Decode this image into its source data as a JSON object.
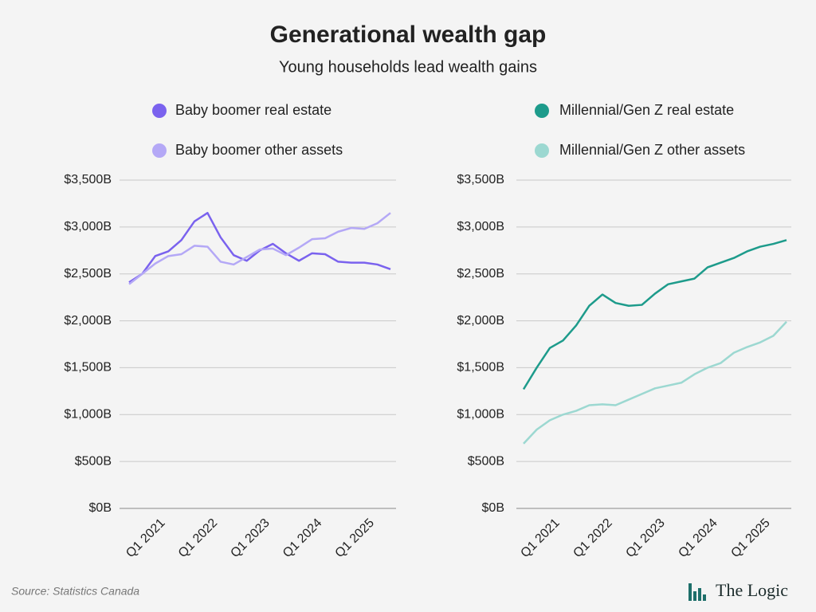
{
  "header": {
    "title": "Generational wealth gap",
    "subtitle": "Young households lead wealth gains"
  },
  "footer": {
    "source": "Source: Statistics Canada",
    "brand": "The Logic"
  },
  "chart_data": [
    {
      "type": "line",
      "categories": [
        null,
        null,
        "Q1 2021",
        null,
        null,
        null,
        "Q1 2022",
        null,
        null,
        null,
        "Q1 2023",
        null,
        null,
        null,
        "Q1 2024",
        null,
        null,
        null,
        "Q1 2025",
        null,
        null
      ],
      "series": [
        {
          "name": "Baby boomer real estate",
          "color": "#7a62ee",
          "values": [
            2410,
            2500,
            2690,
            2740,
            2860,
            3060,
            3150,
            2890,
            2700,
            2640,
            2750,
            2820,
            2720,
            2640,
            2720,
            2710,
            2630,
            2620,
            2620,
            2600,
            2550
          ]
        },
        {
          "name": "Baby boomer other assets",
          "color": "#b4a8f6",
          "values": [
            2390,
            2500,
            2610,
            2690,
            2710,
            2800,
            2790,
            2630,
            2600,
            2680,
            2760,
            2770,
            2700,
            2780,
            2870,
            2880,
            2950,
            2990,
            2980,
            3040,
            3150
          ]
        }
      ],
      "ylim": [
        0,
        3500
      ],
      "yticks": [
        {
          "value": 0,
          "label": "$0B"
        },
        {
          "value": 500,
          "label": "$500B"
        },
        {
          "value": 1000,
          "label": "$1,000B"
        },
        {
          "value": 1500,
          "label": "$1,500B"
        },
        {
          "value": 2000,
          "label": "$2,000B"
        },
        {
          "value": 2500,
          "label": "$2,500B"
        },
        {
          "value": 3000,
          "label": "$3,000B"
        },
        {
          "value": 3500,
          "label": "$3,500B"
        }
      ],
      "grid": true
    },
    {
      "type": "line",
      "categories": [
        null,
        null,
        "Q1 2021",
        null,
        null,
        null,
        "Q1 2022",
        null,
        null,
        null,
        "Q1 2023",
        null,
        null,
        null,
        "Q1 2024",
        null,
        null,
        null,
        "Q1 2025",
        null,
        null
      ],
      "series": [
        {
          "name": "Millennial/Gen Z real estate",
          "color": "#1d9b8b",
          "values": [
            1270,
            1500,
            1710,
            1790,
            1950,
            2160,
            2280,
            2190,
            2160,
            2170,
            2290,
            2390,
            2420,
            2450,
            2570,
            2620,
            2670,
            2740,
            2790,
            2820,
            2860
          ]
        },
        {
          "name": "Millennial/Gen Z other assets",
          "color": "#9cd8d1",
          "values": [
            690,
            840,
            940,
            1000,
            1040,
            1100,
            1110,
            1100,
            1160,
            1220,
            1280,
            1310,
            1340,
            1430,
            1500,
            1550,
            1660,
            1720,
            1770,
            1840,
            1990
          ]
        }
      ],
      "ylim": [
        0,
        3500
      ],
      "yticks": [
        {
          "value": 0,
          "label": "$0B"
        },
        {
          "value": 500,
          "label": "$500B"
        },
        {
          "value": 1000,
          "label": "$1,000B"
        },
        {
          "value": 1500,
          "label": "$1,500B"
        },
        {
          "value": 2000,
          "label": "$2,000B"
        },
        {
          "value": 2500,
          "label": "$2,500B"
        },
        {
          "value": 3000,
          "label": "$3,000B"
        },
        {
          "value": 3500,
          "label": "$3,500B"
        }
      ],
      "grid": true
    }
  ]
}
